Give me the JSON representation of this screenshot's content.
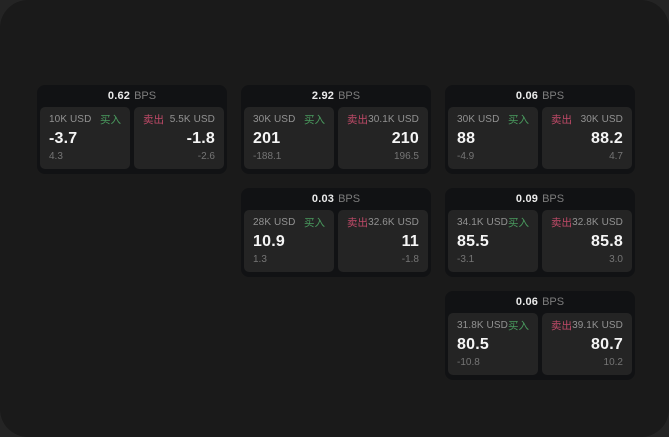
{
  "labels": {
    "buy": "买入",
    "sell": "卖出",
    "bps": "BPS"
  },
  "colors": {
    "buy": "#4a9c5f",
    "sell": "#c04a68",
    "window_bg": "#1a1a1a",
    "card_bg": "#111214",
    "panel_bg": "#242424"
  },
  "cards": [
    {
      "col": 1,
      "row": 1,
      "bps": "0.62",
      "buy": {
        "amount": "10K USD",
        "price": "-3.7",
        "delta": "4.3"
      },
      "sell": {
        "amount": "5.5K USD",
        "price": "-1.8",
        "delta": "-2.6"
      }
    },
    {
      "col": 2,
      "row": 1,
      "bps": "2.92",
      "buy": {
        "amount": "30K USD",
        "price": "201",
        "delta": "-188.1"
      },
      "sell": {
        "amount": "30.1K USD",
        "price": "210",
        "delta": "196.5"
      }
    },
    {
      "col": 3,
      "row": 1,
      "bps": "0.06",
      "buy": {
        "amount": "30K USD",
        "price": "88",
        "delta": "-4.9"
      },
      "sell": {
        "amount": "30K USD",
        "price": "88.2",
        "delta": "4.7"
      }
    },
    {
      "col": 2,
      "row": 2,
      "bps": "0.03",
      "buy": {
        "amount": "28K USD",
        "price": "10.9",
        "delta": "1.3"
      },
      "sell": {
        "amount": "32.6K USD",
        "price": "11",
        "delta": "-1.8"
      }
    },
    {
      "col": 3,
      "row": 2,
      "bps": "0.09",
      "buy": {
        "amount": "34.1K USD",
        "price": "85.5",
        "delta": "-3.1"
      },
      "sell": {
        "amount": "32.8K USD",
        "price": "85.8",
        "delta": "3.0"
      }
    },
    {
      "col": 3,
      "row": 3,
      "bps": "0.06",
      "buy": {
        "amount": "31.8K USD",
        "price": "80.5",
        "delta": "-10.8"
      },
      "sell": {
        "amount": "39.1K USD",
        "price": "80.7",
        "delta": "10.2"
      }
    }
  ]
}
